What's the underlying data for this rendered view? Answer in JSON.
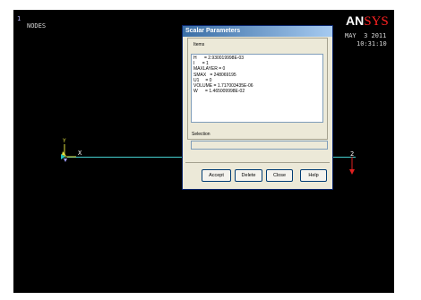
{
  "graphics": {
    "window_number": "1",
    "plot_label": "NODES",
    "logo_main": "AN",
    "logo_accent": "SYS",
    "date": "MAY  3 2011",
    "time": "10:31:10",
    "node_left_label": "X",
    "node_right_label": "2",
    "triad_y": "Y",
    "triad_x": "X",
    "colors": {
      "background": "#000000",
      "line": "#45d0d0",
      "force_arrow": "#e02020",
      "triad": "#e0e040"
    }
  },
  "dialog": {
    "title": "Scalar Parameters",
    "items_label": "Items",
    "items": [
      "H      = 2.930019998E-03",
      "I      = 1",
      "MAXLAYER = 0",
      "SMAX   = 248069195",
      "U1     = 0",
      "VOLUME = 1.717003435E-06",
      "W      = 1.465009998E-02"
    ],
    "selection_label": "Selection",
    "selection_value": "",
    "buttons": {
      "accept": "Accept",
      "delete": "Delete",
      "close": "Close",
      "help": "Help"
    }
  }
}
